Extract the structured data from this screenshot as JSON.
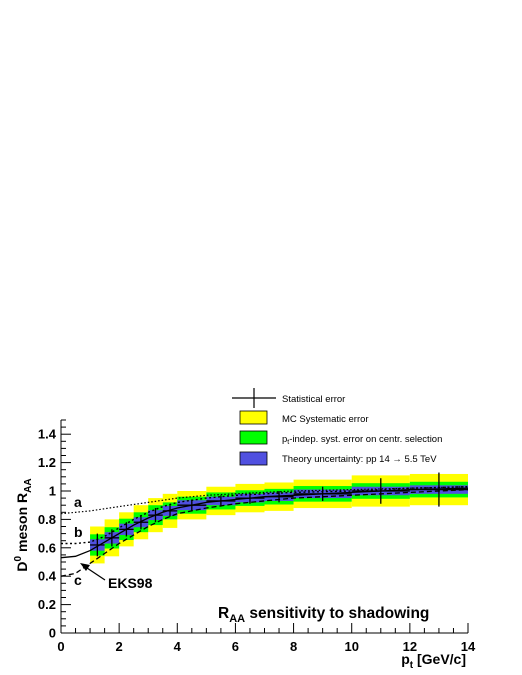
{
  "chart_data": {
    "type": "scatter",
    "xlabel_main": "p",
    "xlabel_sub": "t",
    "xlabel_unit": " [GeV/c]",
    "ylabel_main": "D",
    "ylabel_sup": "0",
    "ylabel_mid": " meson R",
    "ylabel_sub": "AA",
    "xlim": [
      0,
      14
    ],
    "ylim": [
      0,
      1.5
    ],
    "x_ticks": [
      "0",
      "2",
      "4",
      "6",
      "8",
      "10",
      "12",
      "14"
    ],
    "y_ticks": [
      "0",
      "0.2",
      "0.4",
      "0.6",
      "0.8",
      "1",
      "1.2",
      "1.4"
    ],
    "legend": {
      "placement": "top",
      "entries": {
        "stat": "Statistical error",
        "mc_syst": "MC Systematic error",
        "pt_indep_pre": "p",
        "pt_indep_sub": "t",
        "pt_indep_post": "-indep. syst. error on centr. selection",
        "theory": "Theory uncertainty: pp 14    → 5.5 TeV"
      }
    },
    "annotation": {
      "main": "R",
      "sub": "AA",
      "rest": " sensitivity to shadowing"
    },
    "curve_labels": {
      "a": "a",
      "b": "b",
      "c": "c",
      "eks98": "EKS98"
    },
    "colors": {
      "mc_syst": "#ffff00",
      "pt_indep": "#00ff00",
      "theory": "#5050e0",
      "line": "#000000"
    },
    "points": [
      {
        "x": 1.25,
        "y": 0.62,
        "xw": 0.25,
        "stat": 0.08,
        "mc": 0.13,
        "pti": 0.075,
        "th": 0.04
      },
      {
        "x": 1.75,
        "y": 0.67,
        "xw": 0.25,
        "stat": 0.06,
        "mc": 0.13,
        "pti": 0.075,
        "th": 0.04
      },
      {
        "x": 2.25,
        "y": 0.73,
        "xw": 0.25,
        "stat": 0.05,
        "mc": 0.12,
        "pti": 0.075,
        "th": 0.04
      },
      {
        "x": 2.75,
        "y": 0.78,
        "xw": 0.25,
        "stat": 0.05,
        "mc": 0.12,
        "pti": 0.07,
        "th": 0.035
      },
      {
        "x": 3.25,
        "y": 0.83,
        "xw": 0.25,
        "stat": 0.05,
        "mc": 0.12,
        "pti": 0.07,
        "th": 0.035
      },
      {
        "x": 3.75,
        "y": 0.86,
        "xw": 0.25,
        "stat": 0.04,
        "mc": 0.12,
        "pti": 0.06,
        "th": 0.035
      },
      {
        "x": 4.5,
        "y": 0.9,
        "xw": 0.5,
        "stat": 0.04,
        "mc": 0.1,
        "pti": 0.06,
        "th": 0.035
      },
      {
        "x": 5.5,
        "y": 0.93,
        "xw": 0.5,
        "stat": 0.04,
        "mc": 0.1,
        "pti": 0.06,
        "th": 0.03
      },
      {
        "x": 6.5,
        "y": 0.95,
        "xw": 0.5,
        "stat": 0.04,
        "mc": 0.1,
        "pti": 0.055,
        "th": 0.03
      },
      {
        "x": 7.5,
        "y": 0.96,
        "xw": 0.5,
        "stat": 0.04,
        "mc": 0.1,
        "pti": 0.055,
        "th": 0.03
      },
      {
        "x": 9.0,
        "y": 0.98,
        "xw": 1.0,
        "stat": 0.05,
        "mc": 0.1,
        "pti": 0.055,
        "th": 0.03
      },
      {
        "x": 11.0,
        "y": 1.0,
        "xw": 1.0,
        "stat": 0.09,
        "mc": 0.11,
        "pti": 0.055,
        "th": 0.03
      },
      {
        "x": 13.0,
        "y": 1.01,
        "xw": 1.0,
        "stat": 0.12,
        "mc": 0.11,
        "pti": 0.055,
        "th": 0.03
      }
    ],
    "curves": {
      "a": [
        [
          0,
          0.84
        ],
        [
          1,
          0.86
        ],
        [
          2,
          0.89
        ],
        [
          3,
          0.92
        ],
        [
          4,
          0.95
        ],
        [
          5,
          0.97
        ],
        [
          6,
          0.98
        ],
        [
          8,
          1.0
        ],
        [
          10,
          1.01
        ],
        [
          12,
          1.02
        ],
        [
          14,
          1.03
        ]
      ],
      "b": [
        [
          0,
          0.63
        ],
        [
          0.5,
          0.63
        ],
        [
          1,
          0.64
        ],
        [
          1.5,
          0.68
        ],
        [
          2,
          0.74
        ],
        [
          2.5,
          0.8
        ],
        [
          3,
          0.85
        ],
        [
          3.5,
          0.89
        ],
        [
          4,
          0.92
        ],
        [
          5,
          0.95
        ],
        [
          6,
          0.97
        ],
        [
          7,
          0.98
        ],
        [
          8,
          0.99
        ],
        [
          10,
          1.0
        ],
        [
          12,
          1.02
        ],
        [
          14,
          1.03
        ]
      ],
      "eks98": [
        [
          0,
          0.53
        ],
        [
          0.5,
          0.54
        ],
        [
          1,
          0.58
        ],
        [
          1.5,
          0.64
        ],
        [
          2,
          0.7
        ],
        [
          2.5,
          0.76
        ],
        [
          3,
          0.81
        ],
        [
          3.5,
          0.85
        ],
        [
          4,
          0.88
        ],
        [
          4.5,
          0.9
        ],
        [
          5,
          0.92
        ],
        [
          6,
          0.94
        ],
        [
          7,
          0.96
        ],
        [
          8,
          0.97
        ],
        [
          10,
          0.99
        ],
        [
          12,
          1.01
        ],
        [
          14,
          1.02
        ]
      ],
      "c": [
        [
          0,
          0.4
        ],
        [
          0.5,
          0.42
        ],
        [
          1,
          0.49
        ],
        [
          1.5,
          0.56
        ],
        [
          2,
          0.63
        ],
        [
          2.5,
          0.69
        ],
        [
          3,
          0.75
        ],
        [
          3.5,
          0.8
        ],
        [
          4,
          0.84
        ],
        [
          5,
          0.88
        ],
        [
          6,
          0.91
        ],
        [
          7,
          0.93
        ],
        [
          8,
          0.95
        ],
        [
          10,
          0.97
        ],
        [
          12,
          0.99
        ],
        [
          14,
          1.01
        ]
      ]
    }
  }
}
